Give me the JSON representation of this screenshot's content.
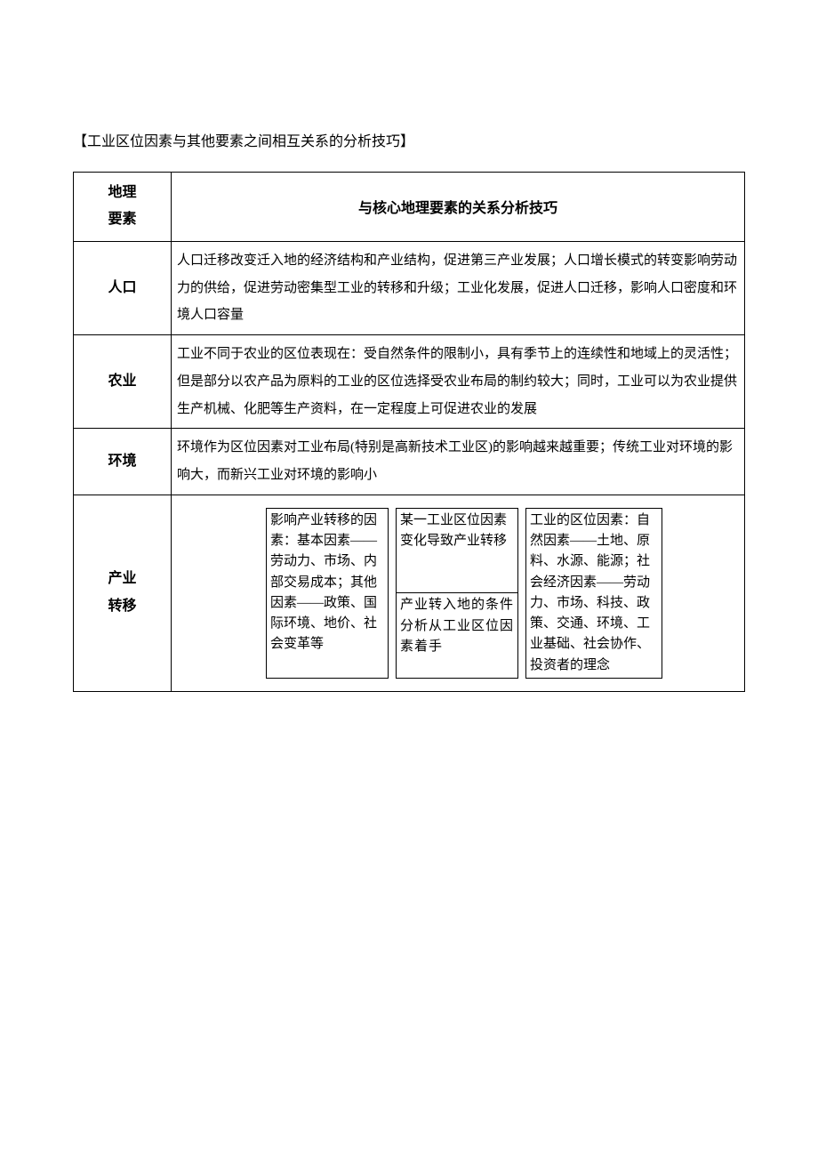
{
  "title": "【工业区位因素与其他要素之间相互关系的分析技巧】",
  "table": {
    "header": {
      "left_line1": "地理",
      "left_line2": "要素",
      "right": "与核心地理要素的关系分析技巧"
    },
    "rows": [
      {
        "label": "人口",
        "content": "人口迁移改变迁入地的经济结构和产业结构，促进第三产业发展；人口增长模式的转变影响劳动力的供给，促进劳动密集型工业的转移和升级；工业化发展，促进人口迁移，影响人口密度和环境人口容量"
      },
      {
        "label": "农业",
        "content": "工业不同于农业的区位表现在：受自然条件的限制小，具有季节上的连续性和地域上的灵活性；但是部分以农产品为原料的工业的区位选择受农业布局的制约较大；同时，工业可以为农业提供生产机械、化肥等生产资料，在一定程度上可促进农业的发展"
      },
      {
        "label": "环境",
        "content": "环境作为区位因素对工业布局(特别是高新技术工业区)的影响越来越重要；传统工业对环境的影响大，而新兴工业对环境的影响小"
      }
    ],
    "diagram_row": {
      "label_line1": "产业",
      "label_line2": "转移",
      "box1": "影响产业转移的因素：基本因素——劳动力、市场、内部交易成本；其他因素——政策、国际环境、地价、社会变革等",
      "box2": "某一工业区位因素变化导致产业转移",
      "box3": "产业转入地的条件分析从工业区位因素着手",
      "box4": "工业的区位因素：自然因素——土地、原料、水源、能源；社会经济因素——劳动力、市场、科技、政策、交通、环境、工业基础、社会协作、投资者的理念"
    }
  },
  "colors": {
    "background": "#ffffff",
    "text": "#000000",
    "border": "#000000"
  },
  "typography": {
    "title_fontsize": 16,
    "header_fontsize": 16,
    "body_fontsize": 15,
    "font_family": "SimSun"
  }
}
